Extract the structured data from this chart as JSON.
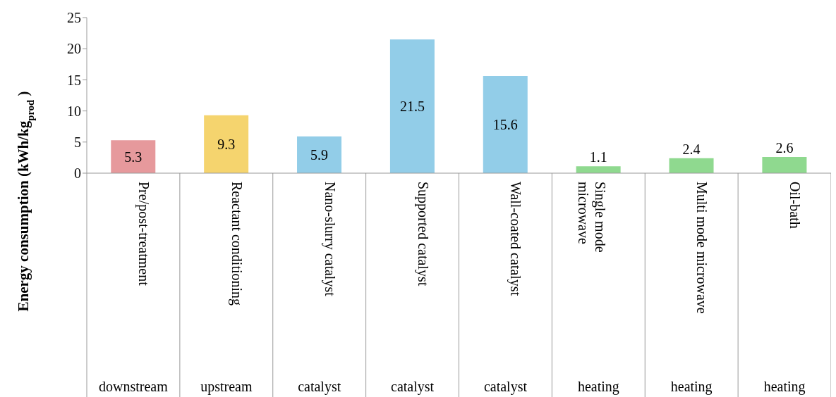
{
  "chart_data": {
    "type": "bar",
    "ylabel": "Energy consumption (kWh/kg$_{prod}$)",
    "categories": [
      "Pre/post-treatment",
      "Reactant conditioning",
      "Nano-slurry catalyst",
      "Supported catalyst",
      "Wall-coated catalyst",
      "Single mode microwave",
      "Multi mode microwave",
      "Oil-bath"
    ],
    "values": [
      5.3,
      9.3,
      5.9,
      21.5,
      15.6,
      1.1,
      2.4,
      2.6
    ],
    "colors": [
      "#e6999c",
      "#f5d46e",
      "#92cde8",
      "#92cde8",
      "#92cde8",
      "#8fd98f",
      "#8fd98f",
      "#8fd98f"
    ],
    "ylim": [
      0,
      25
    ],
    "yticks": [
      0,
      5,
      10,
      15,
      20,
      25
    ],
    "grid": false,
    "legend": false,
    "data_labels": true,
    "annotations": [
      "downstream",
      "upstream",
      "catalyst",
      "catalyst",
      "catalyst",
      "heating",
      "heating",
      "heating"
    ]
  }
}
